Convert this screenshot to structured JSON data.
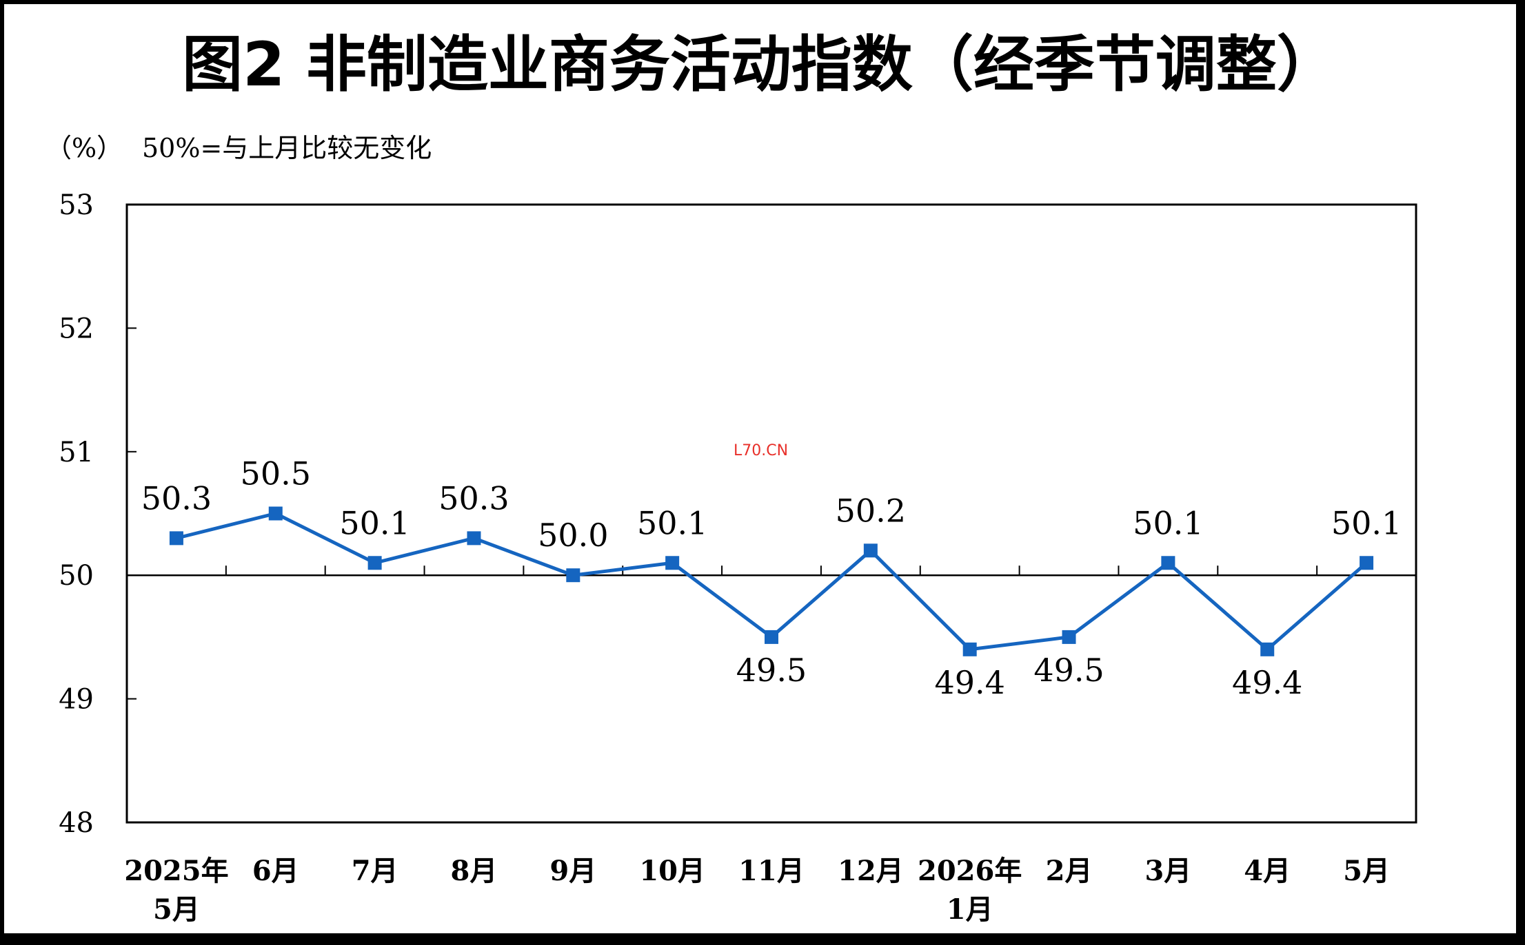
{
  "chart_data": {
    "type": "line",
    "title": "图2 非制造业商务活动指数（经季节调整）",
    "unit_label": "（%）",
    "reference_note": "50%=与上月比较无变化",
    "watermark": "L70.CN",
    "ylim": [
      48,
      53
    ],
    "yticks": [
      "48",
      "49",
      "50",
      "51",
      "52",
      "53"
    ],
    "reference_value": 50,
    "grid": false,
    "categories": [
      [
        "2025年",
        "5月"
      ],
      [
        "6月"
      ],
      [
        "7月"
      ],
      [
        "8月"
      ],
      [
        "9月"
      ],
      [
        "10月"
      ],
      [
        "11月"
      ],
      [
        "12月"
      ],
      [
        "2026年",
        "1月"
      ],
      [
        "2月"
      ],
      [
        "3月"
      ],
      [
        "4月"
      ],
      [
        "5月"
      ]
    ],
    "series": [
      {
        "values": [
          50.3,
          50.5,
          50.1,
          50.3,
          50.0,
          50.1,
          49.5,
          50.2,
          49.4,
          49.5,
          50.1,
          49.4,
          50.1
        ],
        "labels": [
          "50.3",
          "50.5",
          "50.1",
          "50.3",
          "50.0",
          "50.1",
          "49.5",
          "50.2",
          "49.4",
          "49.5",
          "50.1",
          "49.4",
          "50.1"
        ],
        "color": "#1565c0"
      }
    ]
  }
}
